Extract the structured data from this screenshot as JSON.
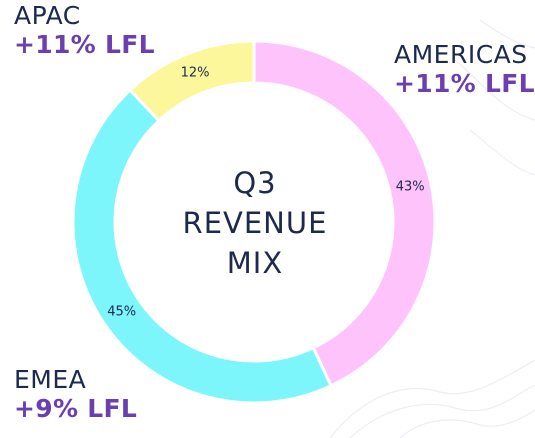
{
  "chart_data": {
    "type": "pie",
    "style": "donut",
    "center_label": [
      "Q3",
      "REVENUE",
      "MIX"
    ],
    "categories": [
      "AMERICAS",
      "EMEA",
      "APAC"
    ],
    "values": [
      43,
      45,
      12
    ],
    "value_labels": [
      "43%",
      "45%",
      "12%"
    ],
    "lfl_labels": [
      "+11% LFL",
      "+9% LFL",
      "+11% LFL"
    ],
    "colors": [
      "#ffc3fb",
      "#7cf6fb",
      "#fcf79a"
    ],
    "stroke_color": "#ffffff"
  },
  "colors": {
    "region_name": "#1b2a4e",
    "lfl_text": "#6b3fb0",
    "center_text": "#1b2a4e"
  }
}
